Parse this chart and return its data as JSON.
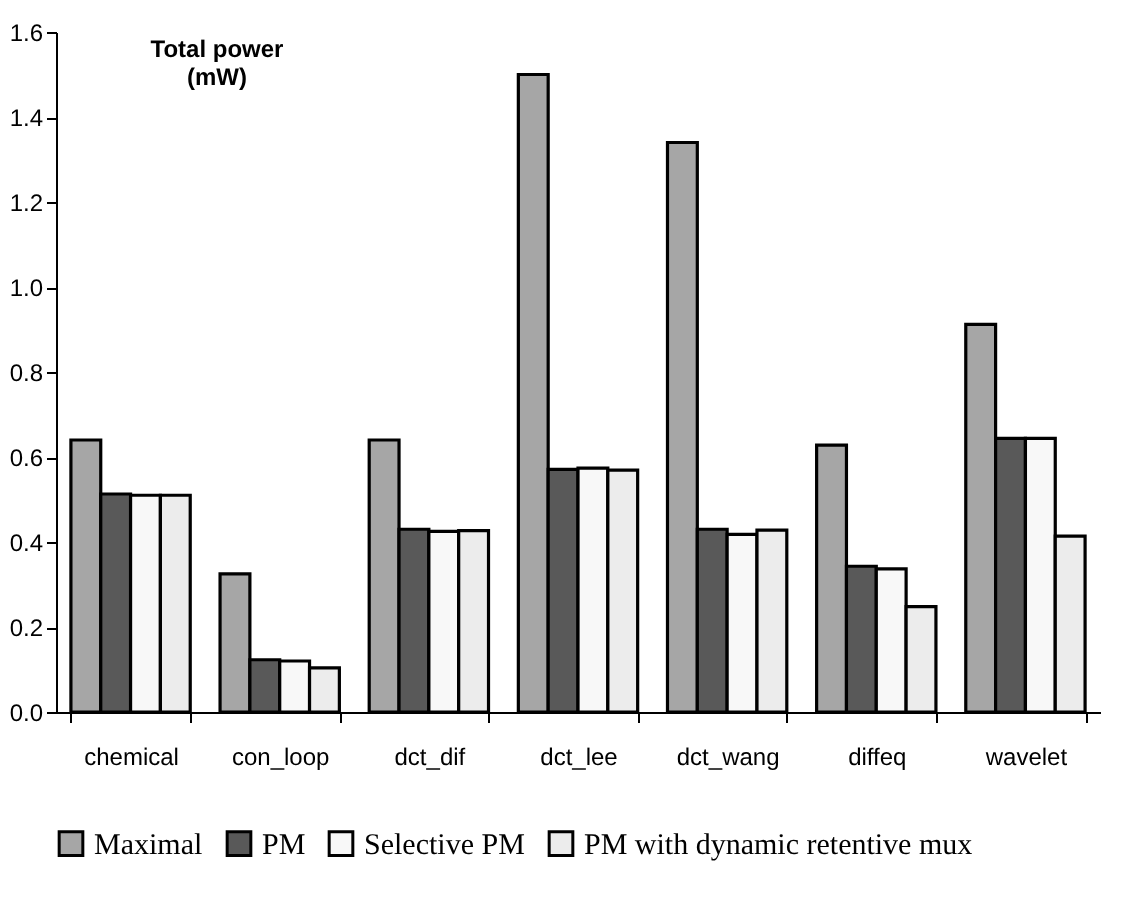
{
  "chart_data": {
    "type": "bar",
    "ylabel": "Total power\n(mW)",
    "categories": [
      "chemical",
      "con_loop",
      "dct_dif",
      "dct_lee",
      "dct_wang",
      "diffeq",
      "wavelet"
    ],
    "series": [
      {
        "name": "Maximal",
        "color": "#a6a6a6",
        "values": [
          0.64,
          0.325,
          0.64,
          1.5,
          1.34,
          0.628,
          0.912
        ]
      },
      {
        "name": "PM",
        "color": "#595959",
        "values": [
          0.513,
          0.123,
          0.43,
          0.571,
          0.43,
          0.343,
          0.644
        ]
      },
      {
        "name": "Selective PM",
        "color": "#f8f8f8",
        "values": [
          0.51,
          0.12,
          0.425,
          0.574,
          0.418,
          0.337,
          0.644
        ]
      },
      {
        "name": "PM with dynamic retentive mux",
        "color": "#ececec",
        "values": [
          0.51,
          0.104,
          0.427,
          0.569,
          0.428,
          0.248,
          0.414
        ]
      }
    ],
    "ylim": [
      0,
      1.6
    ],
    "yticks": [
      {
        "value": 0,
        "label": "0.0"
      },
      {
        "value": 0.2,
        "label": "0.2"
      },
      {
        "value": 0.4,
        "label": "0.4"
      },
      {
        "value": 0.6,
        "label": "0.6"
      },
      {
        "value": 0.8,
        "label": "0.8"
      },
      {
        "value": 1.0,
        "label": "1.0"
      },
      {
        "value": 1.2,
        "label": "1.2"
      },
      {
        "value": 1.4,
        "label": "1.4"
      },
      {
        "value": 1.6,
        "label": "1.6"
      }
    ],
    "grid": false,
    "legend": "bottom"
  }
}
